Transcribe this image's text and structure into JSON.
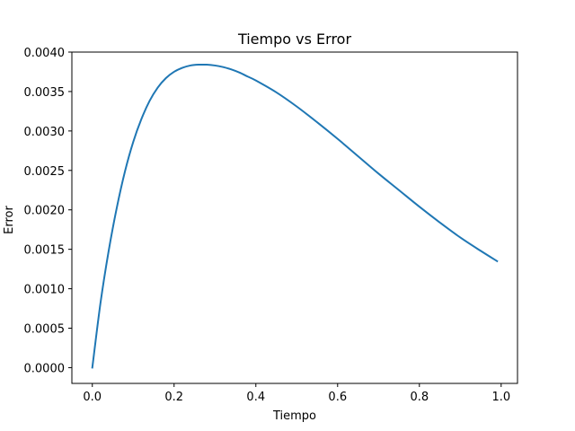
{
  "chart_data": {
    "type": "line",
    "title": "Tiempo vs Error",
    "xlabel": "Tiempo",
    "ylabel": "Error",
    "xlim": [
      -0.05,
      1.04
    ],
    "ylim": [
      -0.0002,
      0.004
    ],
    "xticks": [
      0.0,
      0.2,
      0.4,
      0.6,
      0.8,
      1.0
    ],
    "xtick_labels": [
      "0.0",
      "0.2",
      "0.4",
      "0.6",
      "0.8",
      "1.0"
    ],
    "yticks": [
      0.0,
      0.0005,
      0.001,
      0.0015,
      0.002,
      0.0025,
      0.003,
      0.0035,
      0.004
    ],
    "ytick_labels": [
      "0.0000",
      "0.0005",
      "0.0010",
      "0.0015",
      "0.0020",
      "0.0025",
      "0.0030",
      "0.0035",
      "0.0040"
    ],
    "grid": false,
    "legend": "none",
    "series": [
      {
        "color": "#1f77b4",
        "x": [
          0.0,
          0.02,
          0.04,
          0.06,
          0.08,
          0.1,
          0.12,
          0.14,
          0.16,
          0.18,
          0.2,
          0.22,
          0.24,
          0.26,
          0.28,
          0.3,
          0.32,
          0.34,
          0.36,
          0.38,
          0.4,
          0.45,
          0.5,
          0.55,
          0.6,
          0.65,
          0.7,
          0.75,
          0.8,
          0.85,
          0.9,
          0.95,
          0.99
        ],
        "y": [
          0.0,
          0.00082,
          0.00148,
          0.00203,
          0.00249,
          0.00286,
          0.00315,
          0.00338,
          0.00355,
          0.00367,
          0.00375,
          0.0038,
          0.00383,
          0.00384,
          0.00384,
          0.00383,
          0.00381,
          0.00378,
          0.00374,
          0.00369,
          0.00364,
          0.00349,
          0.00331,
          0.00311,
          0.0029,
          0.00268,
          0.00246,
          0.00225,
          0.00204,
          0.00184,
          0.00165,
          0.00148,
          0.00135
        ]
      }
    ]
  }
}
